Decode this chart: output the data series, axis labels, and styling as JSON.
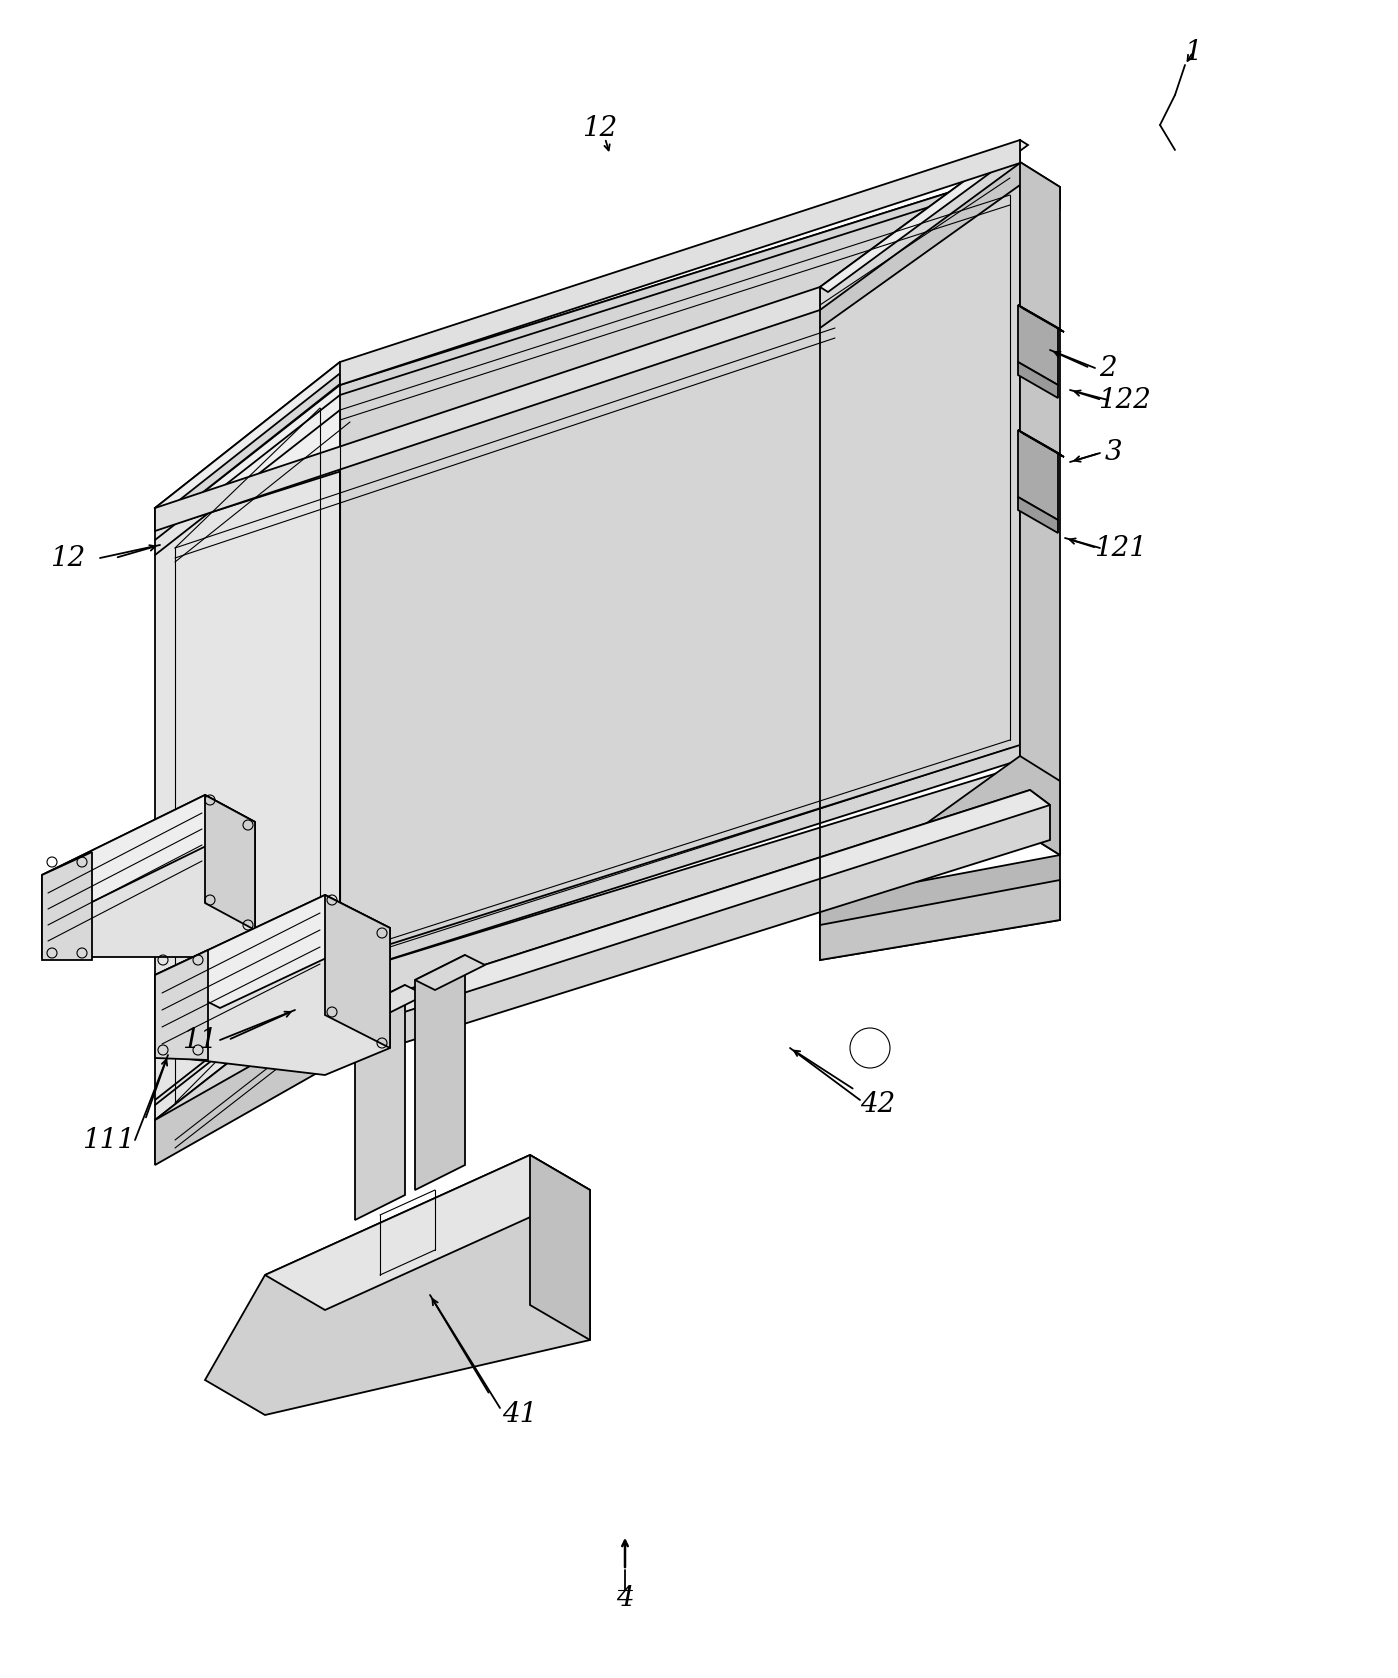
{
  "bg_color": "#ffffff",
  "lc": "#000000",
  "lw": 1.3,
  "tlw": 0.8,
  "fig_width": 13.98,
  "fig_height": 16.78,
  "dpi": 100
}
